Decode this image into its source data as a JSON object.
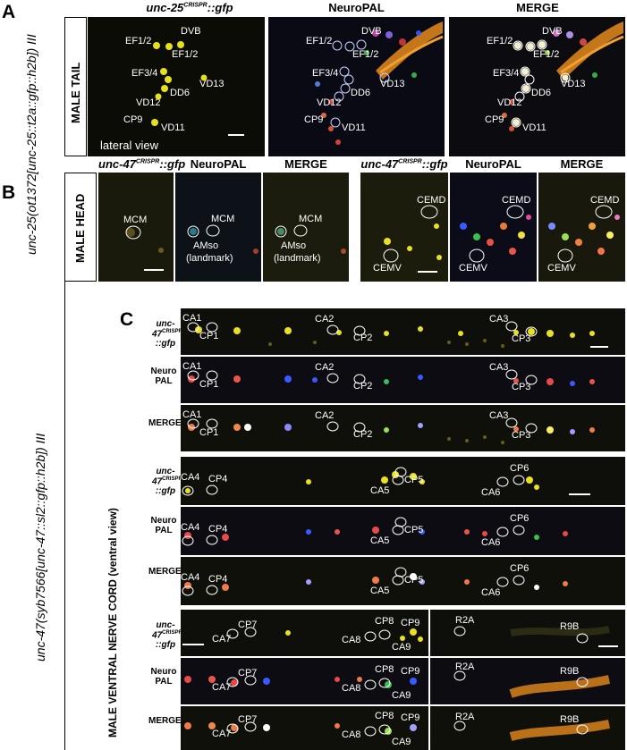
{
  "panels": {
    "a": "A",
    "b": "B",
    "c": "C"
  },
  "a": {
    "side_label": "unc-25(ot1372[unc-25::t2a::gfp::h2b]) III",
    "row_label": "MALE TAIL",
    "col_gfp": "unc-25",
    "col_gfp_sup": "CRISPR",
    "col_gfp_suffix": "::gfp",
    "col_neuropal": "NeuroPAL",
    "col_merge": "MERGE",
    "view_label": "lateral view",
    "cells": [
      "EF1/2",
      "DVB",
      "EF1/2",
      "EF3/4",
      "VD13",
      "DD6",
      "VD12",
      "CP9",
      "VD11"
    ]
  },
  "b": {
    "row_label": "MALE HEAD",
    "col_gfp": "unc-47",
    "col_gfp_sup": "CRISPR",
    "col_gfp_suffix": "::gfp",
    "col_neuropal": "NeuroPAL",
    "col_merge": "MERGE",
    "left_cells": [
      "MCM",
      "AMso",
      "(landmark)"
    ],
    "right_cells": [
      "CEMD",
      "CEMV"
    ]
  },
  "c": {
    "side_label": "unc-47(syb7566[unc-47::sl2::gfp::h2b]) III",
    "row_label": "MALE VENTRAL NERVE CORD (ventral view)",
    "row_gfp_1": "unc-47",
    "row_gfp_sup": "CRISPR",
    "row_gfp_2": "::gfp",
    "row_np_1": "Neuro",
    "row_np_2": "PAL",
    "row_merge": "MERGE",
    "block1": [
      "CA1",
      "CP1",
      "CA2",
      "CP2",
      "CA3",
      "CP3"
    ],
    "block2": [
      "CA4",
      "CP4",
      "CA5",
      "CP5",
      "CA6",
      "CP6"
    ],
    "block3": [
      "CP7",
      "CA7",
      "CP8",
      "CP9",
      "CA8",
      "CA9"
    ],
    "block3_right": [
      "R2A",
      "R9B"
    ]
  }
}
